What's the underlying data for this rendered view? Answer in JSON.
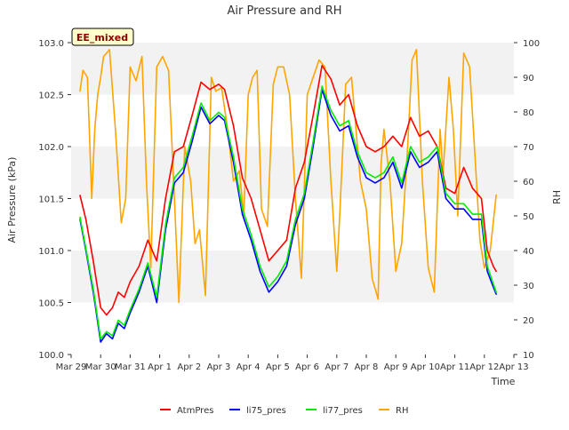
{
  "chart_data": {
    "type": "line",
    "title": "Air Pressure and RH",
    "xlabel": "Time",
    "ylabel_left": "Air Pressure (kPa)",
    "ylabel_right": "RH",
    "annotation": "EE_mixed",
    "ylim_left": [
      100.0,
      103.0
    ],
    "ylim_right": [
      10,
      100
    ],
    "yticks_left": [
      "100.0",
      "100.5",
      "101.0",
      "101.5",
      "102.0",
      "102.5",
      "103.0"
    ],
    "yticks_right": [
      "10",
      "20",
      "30",
      "40",
      "50",
      "60",
      "70",
      "80",
      "90",
      "100"
    ],
    "x_ticks": [
      "Mar 29",
      "Mar 30",
      "Mar 31",
      "Apr 1",
      "Apr 2",
      "Apr 3",
      "Apr 4",
      "Apr 5",
      "Apr 6",
      "Apr 7",
      "Apr 8",
      "Apr 9",
      "Apr 10",
      "Apr 11",
      "Apr 12",
      "Apr 13"
    ],
    "x_start": "Mar 29",
    "grid": "horizontal bands",
    "legend_position": "bottom",
    "colors": {
      "AtmPres": "#ff0000",
      "li75_pres": "#0000ff",
      "li77_pres": "#00ee00",
      "RH": "#ffa500",
      "band": "#f2f2f2",
      "annotation_bg": "#ffffcc",
      "annotation_text": "#8b0000"
    },
    "series": [
      {
        "name": "AtmPres",
        "axis": "left",
        "x": [
          0.3,
          0.5,
          0.75,
          1.0,
          1.2,
          1.4,
          1.6,
          1.8,
          2.0,
          2.3,
          2.6,
          2.9,
          3.2,
          3.5,
          3.8,
          4.1,
          4.4,
          4.7,
          5.0,
          5.2,
          5.5,
          5.8,
          6.1,
          6.4,
          6.7,
          7.0,
          7.3,
          7.6,
          7.9,
          8.2,
          8.5,
          8.8,
          9.1,
          9.4,
          9.7,
          10.0,
          10.3,
          10.6,
          10.9,
          11.2,
          11.5,
          11.8,
          12.1,
          12.4,
          12.7,
          13.0,
          13.3,
          13.6,
          13.9,
          14.1,
          14.3,
          14.4
        ],
        "y": [
          101.53,
          101.3,
          100.9,
          100.45,
          100.38,
          100.45,
          100.6,
          100.55,
          100.7,
          100.85,
          101.1,
          100.9,
          101.5,
          101.95,
          102.0,
          102.3,
          102.62,
          102.55,
          102.6,
          102.55,
          102.2,
          101.7,
          101.5,
          101.2,
          100.9,
          101.0,
          101.1,
          101.6,
          101.85,
          102.3,
          102.78,
          102.65,
          102.4,
          102.5,
          102.2,
          102.0,
          101.95,
          102.0,
          102.1,
          102.0,
          102.28,
          102.1,
          102.15,
          102.0,
          101.6,
          101.55,
          101.8,
          101.6,
          101.5,
          101.0,
          100.85,
          100.8
        ]
      },
      {
        "name": "li75_pres",
        "axis": "left",
        "x": [
          0.3,
          0.5,
          0.75,
          1.0,
          1.2,
          1.4,
          1.6,
          1.8,
          2.0,
          2.3,
          2.6,
          2.9,
          3.2,
          3.5,
          3.8,
          4.1,
          4.4,
          4.7,
          5.0,
          5.2,
          5.5,
          5.8,
          6.1,
          6.4,
          6.7,
          7.0,
          7.3,
          7.6,
          7.9,
          8.2,
          8.5,
          8.8,
          9.1,
          9.4,
          9.7,
          10.0,
          10.3,
          10.6,
          10.9,
          11.2,
          11.5,
          11.8,
          12.1,
          12.4,
          12.7,
          13.0,
          13.3,
          13.6,
          13.9,
          14.1,
          14.3,
          14.4
        ],
        "y": [
          101.3,
          101.0,
          100.6,
          100.12,
          100.2,
          100.15,
          100.3,
          100.25,
          100.4,
          100.6,
          100.85,
          100.5,
          101.2,
          101.65,
          101.75,
          102.05,
          102.38,
          102.22,
          102.3,
          102.25,
          101.85,
          101.35,
          101.1,
          100.8,
          100.6,
          100.7,
          100.85,
          101.25,
          101.5,
          102.0,
          102.55,
          102.3,
          102.15,
          102.2,
          101.9,
          101.7,
          101.65,
          101.7,
          101.85,
          101.6,
          101.95,
          101.8,
          101.85,
          101.95,
          101.5,
          101.4,
          101.4,
          101.3,
          101.3,
          100.8,
          100.65,
          100.58
        ]
      },
      {
        "name": "li77_pres",
        "axis": "left",
        "x": [
          0.3,
          0.5,
          0.75,
          1.0,
          1.2,
          1.4,
          1.6,
          1.8,
          2.0,
          2.3,
          2.6,
          2.9,
          3.2,
          3.5,
          3.8,
          4.1,
          4.4,
          4.7,
          5.0,
          5.2,
          5.5,
          5.8,
          6.1,
          6.4,
          6.7,
          7.0,
          7.3,
          7.6,
          7.9,
          8.2,
          8.5,
          8.8,
          9.1,
          9.4,
          9.7,
          10.0,
          10.3,
          10.6,
          10.9,
          11.2,
          11.5,
          11.8,
          12.1,
          12.4,
          12.7,
          13.0,
          13.3,
          13.6,
          13.9,
          14.1,
          14.3,
          14.4
        ],
        "y": [
          101.32,
          101.02,
          100.63,
          100.15,
          100.22,
          100.18,
          100.33,
          100.28,
          100.43,
          100.63,
          100.88,
          100.55,
          101.25,
          101.7,
          101.8,
          102.1,
          102.42,
          102.25,
          102.33,
          102.28,
          101.9,
          101.4,
          101.15,
          100.85,
          100.65,
          100.75,
          100.9,
          101.3,
          101.55,
          102.05,
          102.58,
          102.35,
          102.2,
          102.25,
          101.95,
          101.75,
          101.7,
          101.75,
          101.9,
          101.65,
          102.0,
          101.85,
          101.9,
          102.0,
          101.55,
          101.45,
          101.45,
          101.35,
          101.35,
          100.85,
          100.68,
          100.6
        ]
      },
      {
        "name": "RH",
        "axis": "right",
        "x": [
          0.3,
          0.4,
          0.55,
          0.7,
          0.8,
          0.9,
          1.0,
          1.1,
          1.3,
          1.5,
          1.7,
          1.85,
          2.0,
          2.2,
          2.4,
          2.55,
          2.7,
          2.9,
          3.1,
          3.3,
          3.5,
          3.65,
          3.85,
          4.05,
          4.2,
          4.35,
          4.55,
          4.75,
          4.9,
          5.1,
          5.3,
          5.5,
          5.7,
          5.85,
          6.0,
          6.15,
          6.3,
          6.45,
          6.65,
          6.85,
          7.0,
          7.2,
          7.4,
          7.6,
          7.8,
          8.0,
          8.2,
          8.4,
          8.6,
          8.8,
          9.0,
          9.1,
          9.3,
          9.5,
          9.65,
          9.8,
          10.0,
          10.2,
          10.4,
          10.5,
          10.6,
          10.8,
          11.0,
          11.2,
          11.4,
          11.55,
          11.7,
          11.9,
          12.1,
          12.3,
          12.5,
          12.6,
          12.8,
          12.95,
          13.1,
          13.3,
          13.5,
          13.7,
          13.85,
          14.0,
          14.2,
          14.4
        ],
        "y": [
          86,
          92,
          90,
          55,
          75,
          85,
          90,
          96,
          98,
          75,
          48,
          55,
          93,
          89,
          96,
          60,
          35,
          93,
          96,
          92,
          55,
          25,
          70,
          60,
          42,
          46,
          27,
          90,
          86,
          87,
          75,
          60,
          63,
          50,
          85,
          90,
          92,
          52,
          47,
          88,
          93,
          93,
          85,
          55,
          32,
          85,
          90,
          95,
          93,
          60,
          34,
          50,
          88,
          90,
          75,
          60,
          52,
          32,
          26,
          65,
          75,
          60,
          34,
          42,
          70,
          95,
          98,
          60,
          35,
          28,
          75,
          62,
          90,
          75,
          50,
          97,
          93,
          65,
          43,
          35,
          40,
          56
        ]
      }
    ]
  },
  "legend": [
    {
      "label": "AtmPres",
      "color": "#ff0000"
    },
    {
      "label": "li75_pres",
      "color": "#0000ff"
    },
    {
      "label": "li77_pres",
      "color": "#00ee00"
    },
    {
      "label": "RH",
      "color": "#ffa500"
    }
  ]
}
